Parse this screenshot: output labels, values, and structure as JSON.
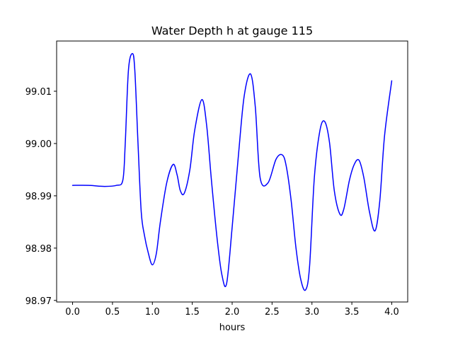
{
  "chart_data": {
    "type": "line",
    "title": "Water Depth h at gauge 115",
    "xlabel": "hours",
    "ylabel": "",
    "xlim": [
      -0.2,
      4.2
    ],
    "ylim": [
      98.9697,
      99.0196
    ],
    "xticks": [
      0.0,
      0.5,
      1.0,
      1.5,
      2.0,
      2.5,
      3.0,
      3.5,
      4.0
    ],
    "xtick_labels": [
      "0.0",
      "0.5",
      "1.0",
      "1.5",
      "2.0",
      "2.5",
      "3.0",
      "3.5",
      "4.0"
    ],
    "yticks": [
      98.97,
      98.98,
      98.99,
      99.0,
      99.01
    ],
    "ytick_labels": [
      "98.97",
      "98.98",
      "98.99",
      "99.00",
      "99.01"
    ],
    "grid": false,
    "series": [
      {
        "color": "#0000ff",
        "x": [
          0.0,
          0.2,
          0.4,
          0.55,
          0.63,
          0.66,
          0.7,
          0.75,
          0.78,
          0.82,
          0.86,
          0.9,
          0.95,
          1.0,
          1.05,
          1.1,
          1.18,
          1.26,
          1.31,
          1.35,
          1.4,
          1.47,
          1.53,
          1.62,
          1.68,
          1.74,
          1.81,
          1.87,
          1.93,
          2.0,
          2.08,
          2.15,
          2.23,
          2.29,
          2.35,
          2.45,
          2.55,
          2.63,
          2.68,
          2.74,
          2.8,
          2.86,
          2.92,
          2.97,
          3.03,
          3.1,
          3.16,
          3.22,
          3.28,
          3.35,
          3.4,
          3.47,
          3.53,
          3.59,
          3.65,
          3.72,
          3.79,
          3.85,
          3.91,
          4.0
        ],
        "y": [
          98.992,
          98.992,
          98.9918,
          98.992,
          98.993,
          99.0,
          99.014,
          99.0172,
          99.014,
          99.0,
          98.987,
          98.9825,
          98.979,
          98.9768,
          98.979,
          98.985,
          98.9925,
          98.996,
          98.994,
          98.991,
          98.9905,
          98.995,
          99.0025,
          99.0084,
          99.0035,
          98.993,
          98.982,
          98.975,
          98.9732,
          98.984,
          98.998,
          99.009,
          99.0133,
          99.007,
          98.9935,
          98.9925,
          98.997,
          98.9978,
          98.9955,
          98.989,
          98.98,
          98.974,
          98.972,
          98.9765,
          98.9935,
          99.0025,
          99.0042,
          99.0002,
          98.991,
          98.9865,
          98.9875,
          98.993,
          98.996,
          98.9968,
          98.9935,
          98.987,
          98.9833,
          98.989,
          99.0015,
          99.012
        ]
      }
    ]
  }
}
